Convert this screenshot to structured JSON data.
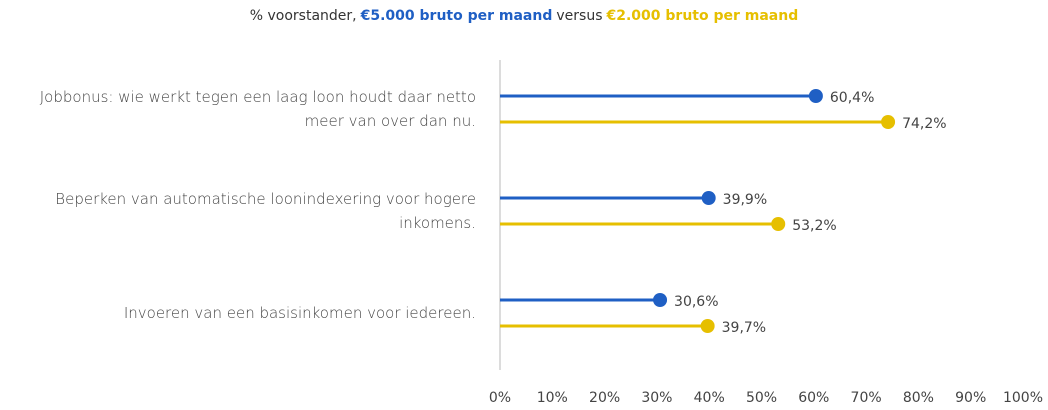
{
  "chart_data": {
    "type": "lollipop",
    "title_prefix": "% voorstander,",
    "title_joiner": "versus",
    "categories": [
      "Jobbonus: wie werkt tegen een laag loon houdt daar netto meer van over dan nu.",
      "Beperken van automatische loonindexering voor hogere inkomens.",
      "Invoeren van een basisinkomen voor iedereen."
    ],
    "series": [
      {
        "name": "€5.000 bruto per maand",
        "color": "#1f5fc4",
        "values": [
          60.4,
          39.9,
          30.6
        ],
        "value_labels": [
          "60,4%",
          "39,9%",
          "30,6%"
        ]
      },
      {
        "name": "€2.000 bruto per maand",
        "color": "#e6bf00",
        "values": [
          74.2,
          53.2,
          39.7
        ],
        "value_labels": [
          "74,2%",
          "53,2%",
          "39,7%"
        ]
      }
    ],
    "xlim": [
      0,
      100
    ],
    "xticks": [
      {
        "value": 0,
        "label": "0%"
      },
      {
        "value": 10,
        "label": "10%"
      },
      {
        "value": 20,
        "label": "20%"
      },
      {
        "value": 30,
        "label": "30%"
      },
      {
        "value": 40,
        "label": "40%"
      },
      {
        "value": 50,
        "label": "50%"
      },
      {
        "value": 60,
        "label": "60%"
      },
      {
        "value": 70,
        "label": "70%"
      },
      {
        "value": 80,
        "label": "80%"
      },
      {
        "value": 90,
        "label": "90%"
      },
      {
        "value": 100,
        "label": "100%"
      }
    ]
  }
}
